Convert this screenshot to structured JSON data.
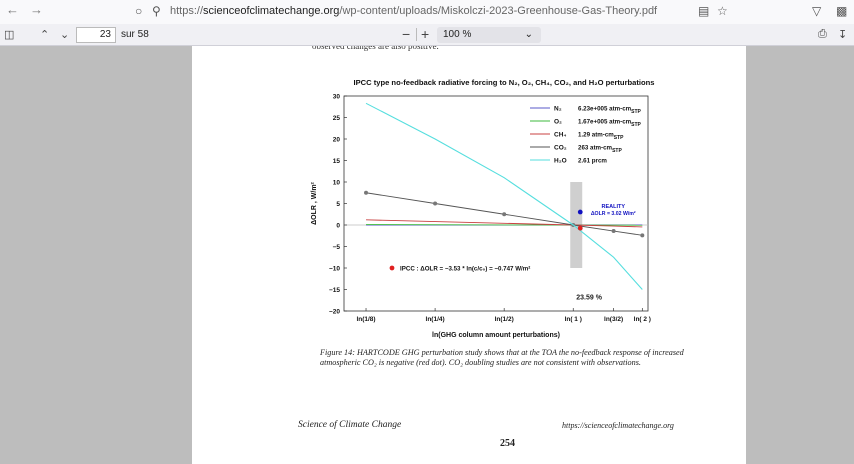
{
  "browser": {
    "url_prefix": "https://",
    "url_domain": "scienceofclimatechange.org",
    "url_path": "/wp-content/uploads/Miskolczi-2023-Greenhouse-Gas-Theory.pdf"
  },
  "pdf_toolbar": {
    "page_value": "23",
    "page_total": "sur 58",
    "zoom_value": "100 %"
  },
  "page": {
    "caption": "Figure 14: HARTCODE GHG perturbation study shows that at the TOA the no-feedback response of increased atmospheric CO₂ is negative (red dot). CO₂ doubling studies are not consistent with observations.",
    "footer_left": "Science of Climate Change",
    "footer_right": "https://scienceofclimatechange.org",
    "page_number": "254"
  },
  "chart_data": {
    "type": "line",
    "title": "IPCC type no-feedback radiative forcing to N₂, O₂, CH₄, CO₂, and H₂O perturbations",
    "xlabel": "ln(GHG column amount perturbations)",
    "ylabel": "ΔOLR , W/m²",
    "ylim": [
      -20,
      30
    ],
    "yticks": [
      30,
      25,
      20,
      15,
      10,
      5,
      0,
      -5,
      -10,
      -15,
      -20
    ],
    "xtick_labels": [
      "ln(1/8)",
      "ln(1/4)",
      "ln(1/2)",
      "ln( 1 )",
      "ln(3/2)",
      "ln( 2 )"
    ],
    "xtick_values": [
      -2.079,
      -1.386,
      -0.693,
      0.0,
      0.405,
      0.693
    ],
    "xlim": [
      -2.3,
      0.75
    ],
    "legend_position": "top-right",
    "series": [
      {
        "name": "N₂",
        "amount": "6.23e+005 atm-cm",
        "unit_sub": "STP",
        "color": "#5a5ac8",
        "x": [
          -2.079,
          0.693
        ],
        "y": [
          0.0,
          0.0
        ],
        "markers": false
      },
      {
        "name": "O₂",
        "amount": "1.67e+005 atm-cm",
        "unit_sub": "STP",
        "color": "#3cb83c",
        "x": [
          -2.079,
          0.693
        ],
        "y": [
          0.1,
          -0.05
        ],
        "markers": false
      },
      {
        "name": "CH₄",
        "amount": "1.29 atm-cm",
        "unit_sub": "STP",
        "color": "#c84040",
        "x": [
          -2.079,
          -1.386,
          -0.693,
          0.0,
          0.405,
          0.693
        ],
        "y": [
          1.2,
          0.8,
          0.4,
          0.0,
          -0.25,
          -0.45
        ],
        "markers": false
      },
      {
        "name": "CO₂",
        "amount": "263 atm-cm",
        "unit_sub": "STP",
        "color": "#555555",
        "x": [
          -2.079,
          -1.386,
          -0.693,
          0.0,
          0.405,
          0.693
        ],
        "y": [
          7.5,
          5.0,
          2.5,
          0.0,
          -1.4,
          -2.4
        ],
        "markers": true
      },
      {
        "name": "H₂O",
        "amount": "2.61 prcm",
        "unit_sub": "",
        "color": "#55dede",
        "x": [
          -2.079,
          -1.386,
          -0.693,
          0.0,
          0.405,
          0.693
        ],
        "y": [
          28.3,
          20.0,
          11.0,
          0.0,
          -7.5,
          -15.0
        ],
        "markers": false
      }
    ],
    "reality_point": {
      "x": 0.0,
      "y": 3.02,
      "label": "REALITY",
      "value_label": "ΔOLR = 3.02 W/m²",
      "color": "#1010c0"
    },
    "ipcc_point": {
      "x": 0.0,
      "y": -0.747,
      "label": "IPCC : ΔOLR = −3.53 * ln(c/c₀) = −0.747 W/m²",
      "color": "#e02020"
    },
    "shaded_band": {
      "x0": -0.03,
      "x1": 0.09,
      "y0": -10,
      "y1": 10,
      "label": "23.59 %"
    }
  }
}
